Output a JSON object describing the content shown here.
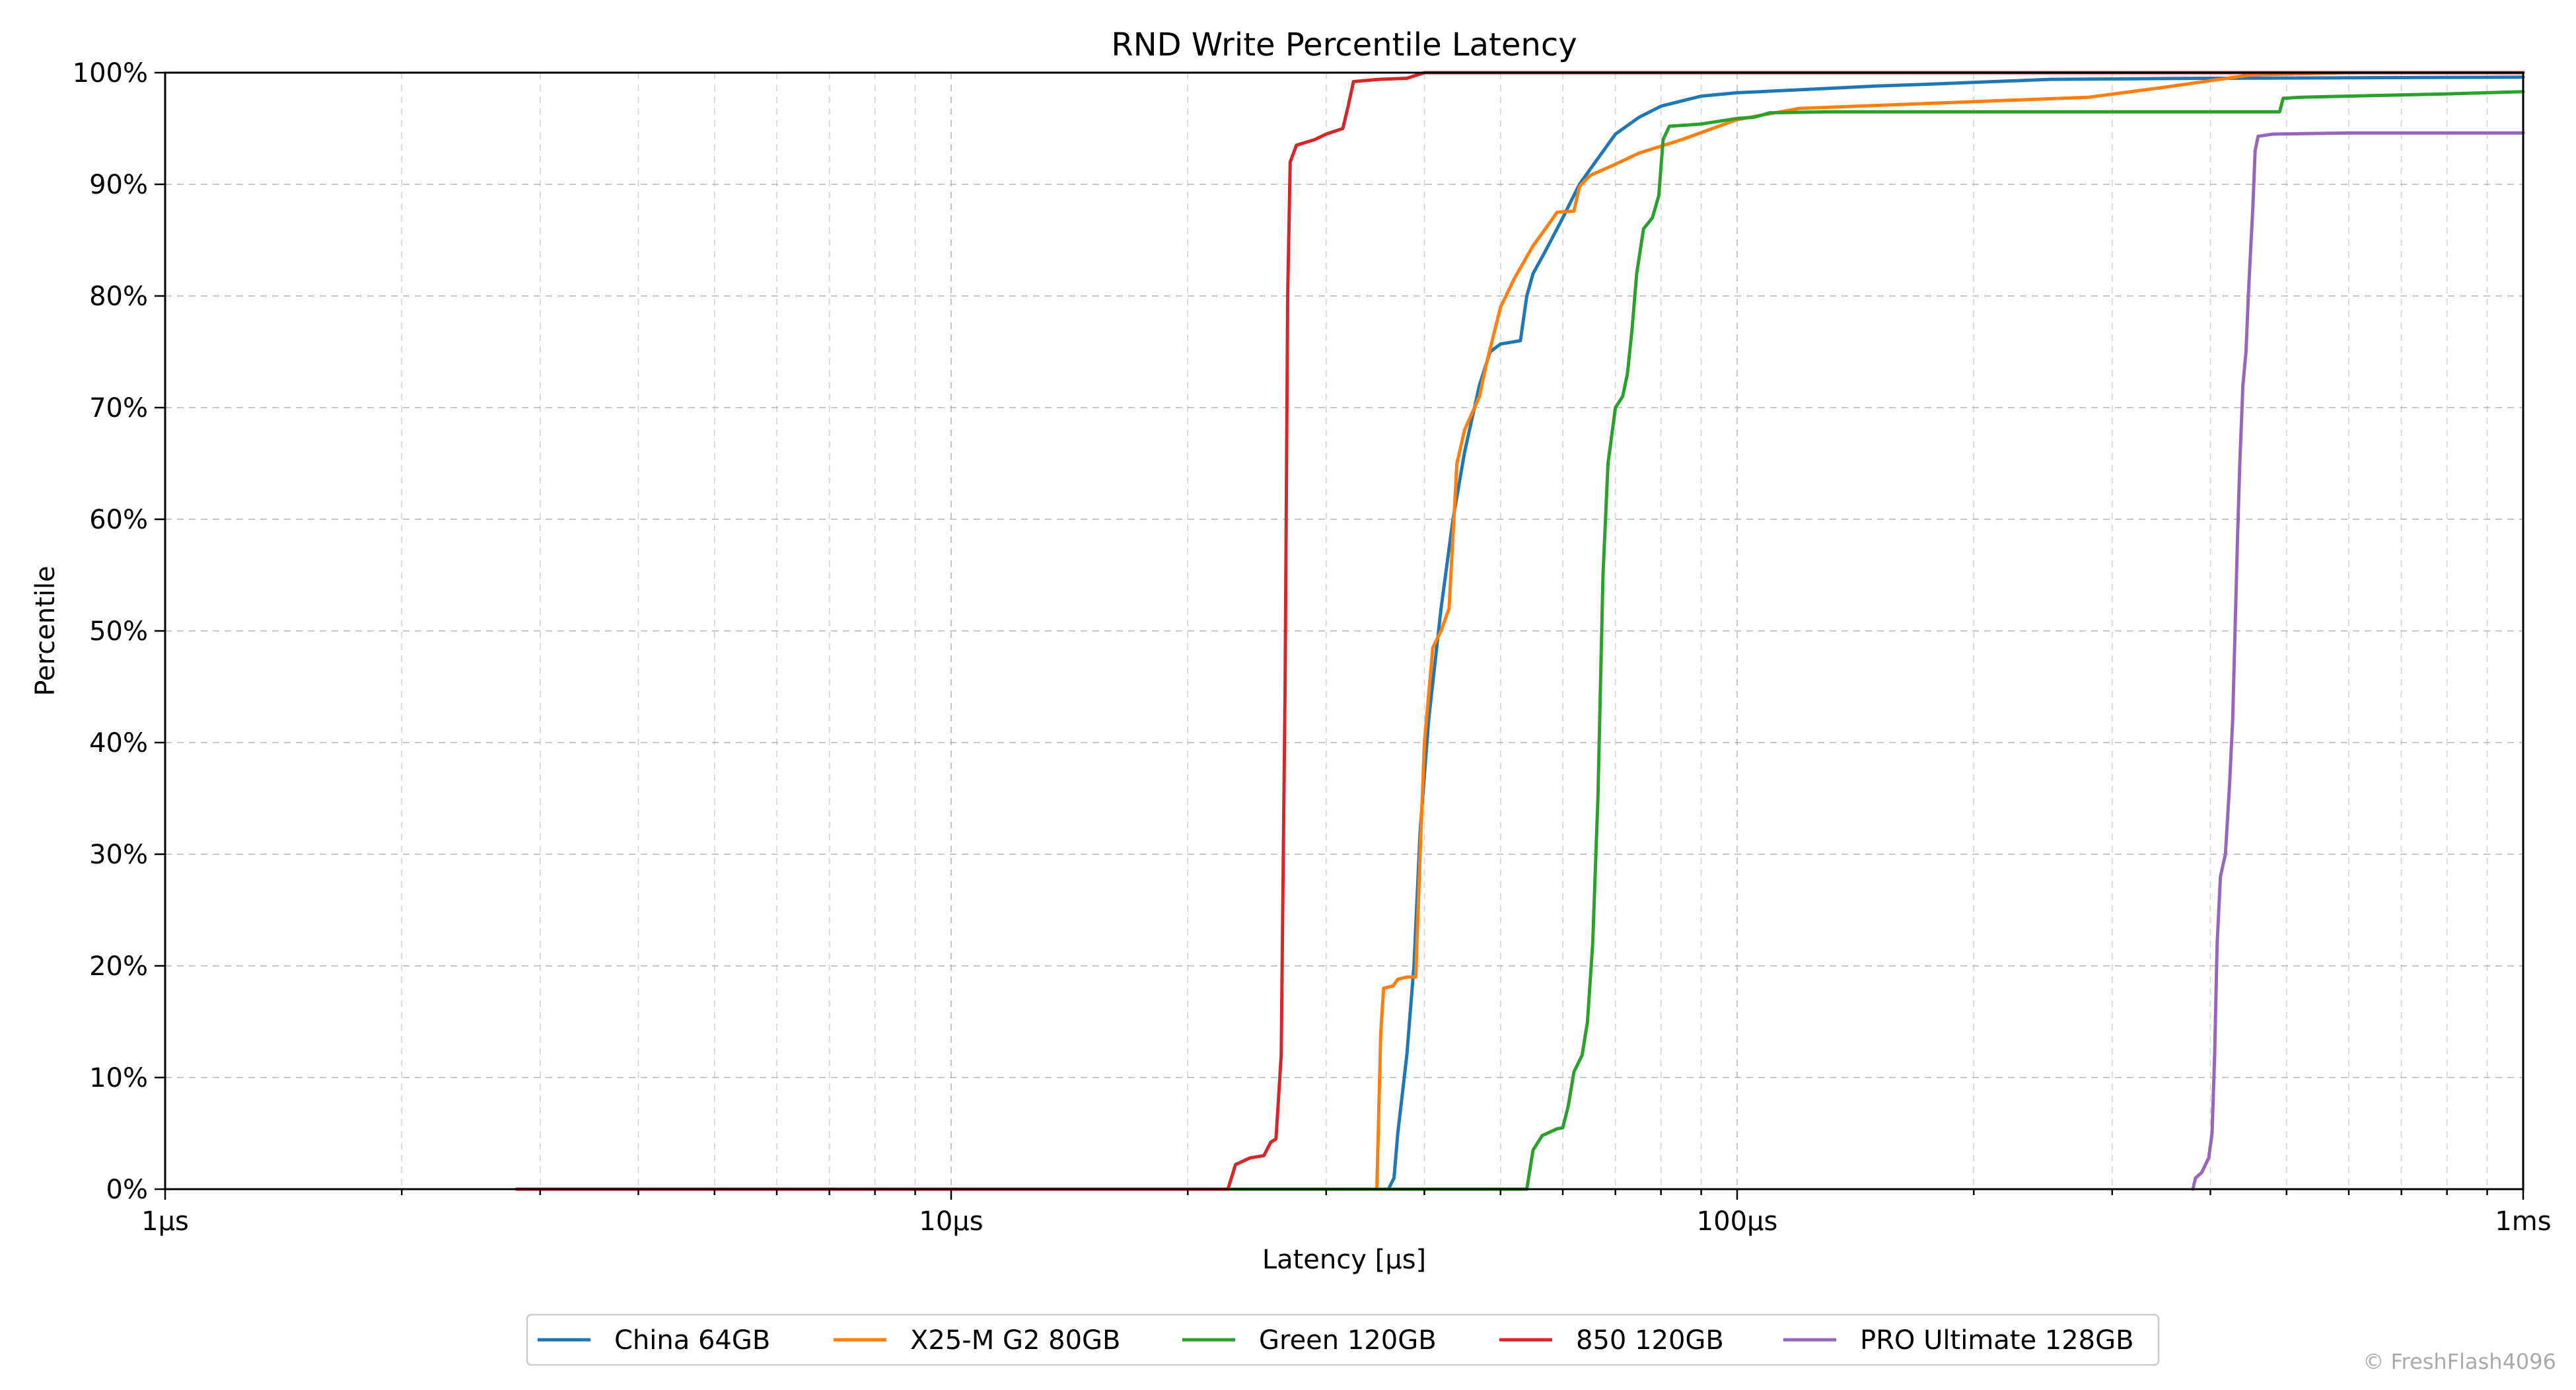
{
  "chart_data": {
    "type": "line",
    "title": "RND Write Percentile Latency",
    "xlabel": "Latency [µs]",
    "ylabel": "Percentile",
    "xscale": "log",
    "xlim": [
      1,
      1000
    ],
    "ylim": [
      0,
      100
    ],
    "x_ticks": [
      {
        "value": 1,
        "label": "1µs"
      },
      {
        "value": 10,
        "label": "10µs"
      },
      {
        "value": 100,
        "label": "100µs"
      },
      {
        "value": 1000,
        "label": "1ms"
      }
    ],
    "y_ticks": [
      {
        "value": 0,
        "label": "0%"
      },
      {
        "value": 10,
        "label": "10%"
      },
      {
        "value": 20,
        "label": "20%"
      },
      {
        "value": 30,
        "label": "30%"
      },
      {
        "value": 40,
        "label": "40%"
      },
      {
        "value": 50,
        "label": "50%"
      },
      {
        "value": 60,
        "label": "60%"
      },
      {
        "value": 70,
        "label": "70%"
      },
      {
        "value": 80,
        "label": "80%"
      },
      {
        "value": 90,
        "label": "90%"
      },
      {
        "value": 100,
        "label": "100%"
      }
    ],
    "grid": true,
    "legend_position": "bottom-center",
    "series": [
      {
        "name": "China 64GB",
        "color": "#1f77b4",
        "points": [
          [
            2.8,
            0
          ],
          [
            36,
            0
          ],
          [
            36.6,
            1
          ],
          [
            37,
            5
          ],
          [
            38,
            12
          ],
          [
            38.8,
            20
          ],
          [
            39.5,
            32
          ],
          [
            40.5,
            42
          ],
          [
            42,
            52
          ],
          [
            43.5,
            60
          ],
          [
            45,
            66
          ],
          [
            47,
            72
          ],
          [
            48.5,
            75
          ],
          [
            50,
            75.7
          ],
          [
            53,
            76
          ],
          [
            54,
            80
          ],
          [
            55,
            82
          ],
          [
            57,
            84
          ],
          [
            60,
            87
          ],
          [
            63,
            90
          ],
          [
            66,
            92
          ],
          [
            70,
            94.5
          ],
          [
            75,
            96
          ],
          [
            80,
            97
          ],
          [
            90,
            97.9
          ],
          [
            100,
            98.2
          ],
          [
            150,
            98.8
          ],
          [
            180,
            99
          ],
          [
            250,
            99.4
          ],
          [
            400,
            99.5
          ],
          [
            1000,
            99.6
          ]
        ]
      },
      {
        "name": "X25-M G2 80GB",
        "color": "#ff7f0e",
        "points": [
          [
            2.8,
            0
          ],
          [
            34.8,
            0
          ],
          [
            35.2,
            14
          ],
          [
            35.5,
            18
          ],
          [
            36.5,
            18.2
          ],
          [
            37,
            18.8
          ],
          [
            38,
            19
          ],
          [
            39,
            19
          ],
          [
            39.5,
            30
          ],
          [
            40,
            40
          ],
          [
            41,
            48.5
          ],
          [
            42,
            50
          ],
          [
            43,
            52
          ],
          [
            44,
            65
          ],
          [
            45,
            68
          ],
          [
            47,
            71
          ],
          [
            48,
            74
          ],
          [
            50,
            79
          ],
          [
            52,
            81.5
          ],
          [
            55,
            84.5
          ],
          [
            57,
            86
          ],
          [
            59,
            87.5
          ],
          [
            62,
            87.6
          ],
          [
            63,
            89.8
          ],
          [
            65,
            90.8
          ],
          [
            70,
            91.8
          ],
          [
            75,
            92.8
          ],
          [
            85,
            94
          ],
          [
            100,
            95.8
          ],
          [
            120,
            96.8
          ],
          [
            200,
            97.4
          ],
          [
            280,
            97.8
          ],
          [
            350,
            98.7
          ],
          [
            450,
            99.8
          ],
          [
            600,
            100
          ],
          [
            1000,
            100
          ]
        ]
      },
      {
        "name": "Green 120GB",
        "color": "#2ca02c",
        "points": [
          [
            2.8,
            0
          ],
          [
            54,
            0
          ],
          [
            55,
            3.5
          ],
          [
            56.5,
            4.8
          ],
          [
            59,
            5.4
          ],
          [
            60,
            5.5
          ],
          [
            61,
            7.5
          ],
          [
            62,
            10.5
          ],
          [
            63.5,
            12
          ],
          [
            64.5,
            15
          ],
          [
            65.5,
            22
          ],
          [
            66.5,
            35
          ],
          [
            67.5,
            55
          ],
          [
            68.5,
            65
          ],
          [
            70,
            70
          ],
          [
            71.5,
            71
          ],
          [
            72.5,
            73
          ],
          [
            73.5,
            77
          ],
          [
            74.5,
            82
          ],
          [
            76,
            86
          ],
          [
            78,
            87
          ],
          [
            79.5,
            89
          ],
          [
            80.5,
            94
          ],
          [
            82,
            95.2
          ],
          [
            90,
            95.4
          ],
          [
            100,
            95.9
          ],
          [
            105,
            96
          ],
          [
            110,
            96.4
          ],
          [
            130,
            96.5
          ],
          [
            490,
            96.5
          ],
          [
            495,
            97.7
          ],
          [
            520,
            97.8
          ],
          [
            600,
            97.9
          ],
          [
            800,
            98.1
          ],
          [
            1000,
            98.3
          ]
        ]
      },
      {
        "name": "850 120GB",
        "color": "#d62728",
        "points": [
          [
            2.8,
            0
          ],
          [
            22.5,
            0
          ],
          [
            23,
            2.2
          ],
          [
            24,
            2.8
          ],
          [
            25,
            3
          ],
          [
            25.5,
            4.2
          ],
          [
            25.9,
            4.5
          ],
          [
            26.3,
            12
          ],
          [
            26.6,
            45
          ],
          [
            26.8,
            80
          ],
          [
            27,
            92
          ],
          [
            27.5,
            93.5
          ],
          [
            29,
            94
          ],
          [
            30,
            94.5
          ],
          [
            31.5,
            95
          ],
          [
            32,
            97
          ],
          [
            32.5,
            99.2
          ],
          [
            35,
            99.4
          ],
          [
            38,
            99.5
          ],
          [
            40,
            100
          ],
          [
            1000,
            100
          ]
        ]
      },
      {
        "name": "PRO Ultimate 128GB",
        "color": "#9467bd",
        "points": [
          [
            380,
            0
          ],
          [
            383,
            1
          ],
          [
            390,
            1.5
          ],
          [
            398,
            2.8
          ],
          [
            402,
            5
          ],
          [
            405,
            12
          ],
          [
            408,
            22
          ],
          [
            412,
            28
          ],
          [
            418,
            30
          ],
          [
            423,
            36
          ],
          [
            427,
            42
          ],
          [
            430,
            50
          ],
          [
            433,
            58
          ],
          [
            436,
            65
          ],
          [
            440,
            72
          ],
          [
            444,
            75
          ],
          [
            447,
            80
          ],
          [
            450,
            84
          ],
          [
            453,
            88
          ],
          [
            456,
            93
          ],
          [
            460,
            94.3
          ],
          [
            480,
            94.5
          ],
          [
            600,
            94.6
          ],
          [
            1000,
            94.6
          ]
        ]
      }
    ]
  },
  "watermark": "© FreshFlash4096"
}
